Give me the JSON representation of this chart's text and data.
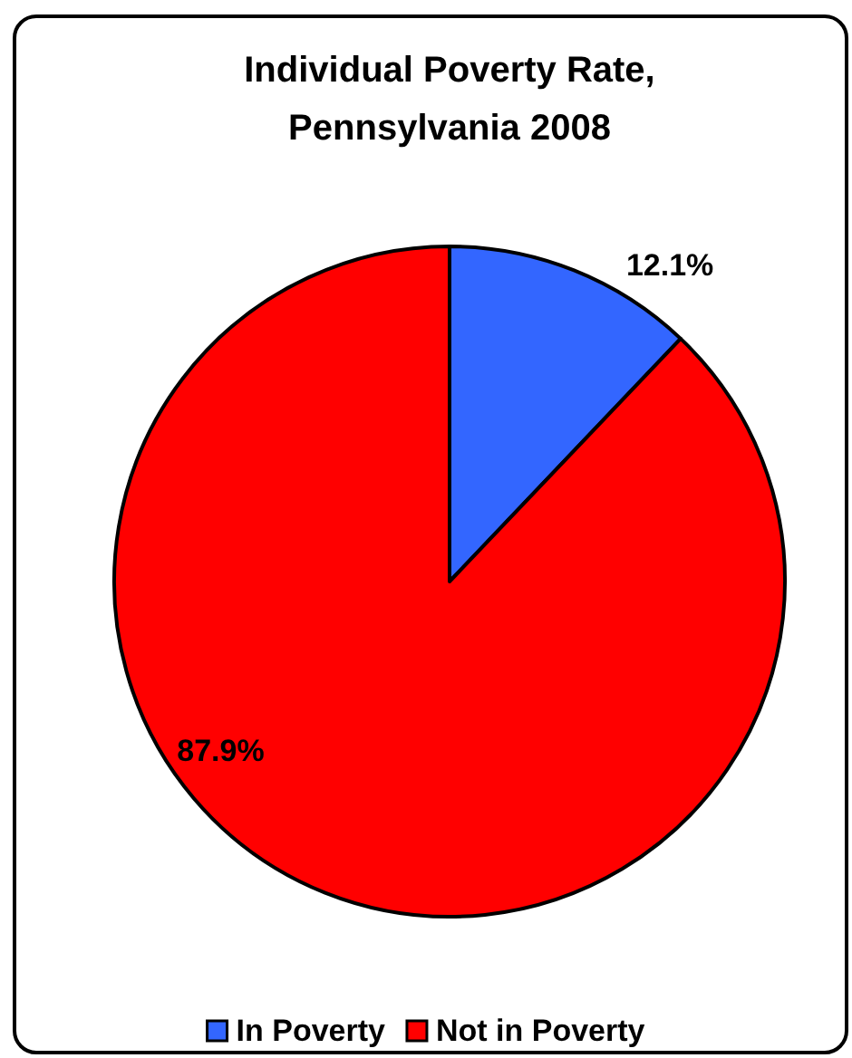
{
  "chart_data": {
    "type": "pie",
    "title": "Individual Poverty Rate,\nPennsylvania 2008",
    "categories": [
      "In Poverty",
      "Not in Poverty"
    ],
    "values": [
      12.1,
      87.9
    ],
    "colors": [
      "#3366ff",
      "#ff0000"
    ],
    "value_labels": [
      "12.1%",
      "87.9%"
    ],
    "legend": "bottom"
  }
}
